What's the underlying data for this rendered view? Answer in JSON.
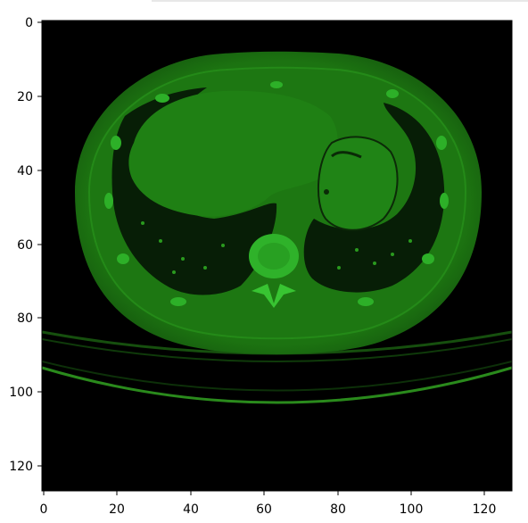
{
  "figure": {
    "title": "",
    "image_description_colormap": "green channel",
    "colors": {
      "background": "#000000",
      "tissue": "#1f7a12",
      "bright": "#2fb82a",
      "lung": "#061a06",
      "axis": "#000000"
    }
  },
  "axes": {
    "x_ticks": [
      "0",
      "20",
      "40",
      "60",
      "80",
      "100",
      "120"
    ],
    "y_ticks": [
      "0",
      "20",
      "40",
      "60",
      "80",
      "100",
      "120"
    ],
    "x_range": [
      0,
      127
    ],
    "y_range": [
      0,
      127
    ]
  }
}
